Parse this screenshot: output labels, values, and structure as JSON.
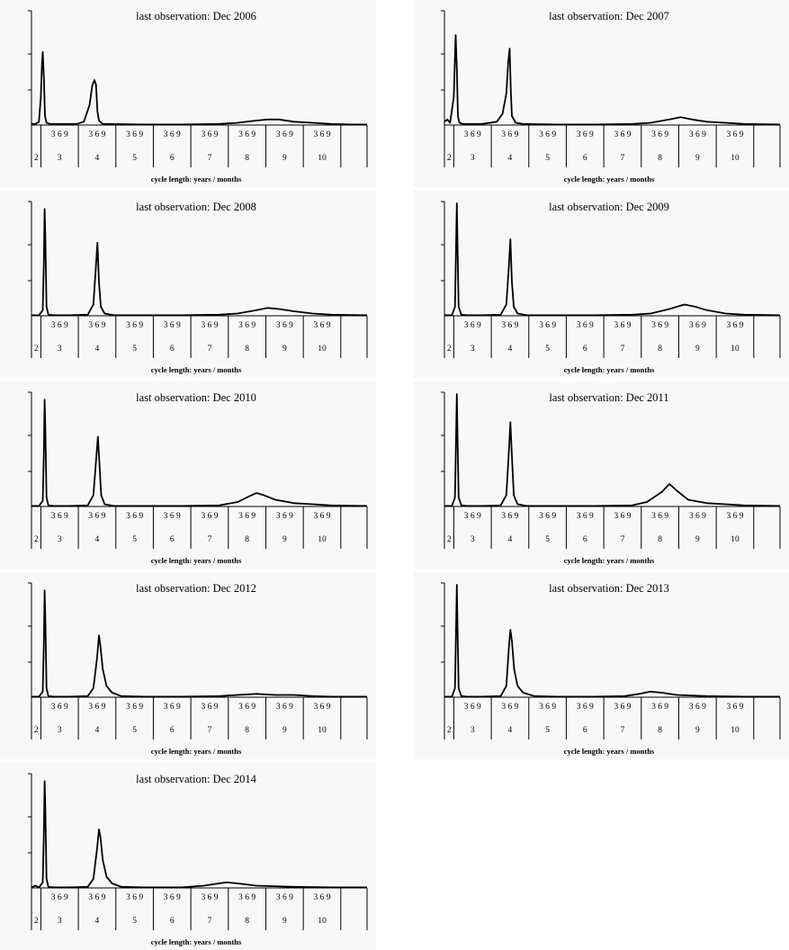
{
  "chart_data": [
    {
      "type": "line",
      "title": "last observation: Dec 2006",
      "xlabel": "cycle length: years / months",
      "month_labels": "3 6 9",
      "year_labels": [
        "2",
        "3",
        "4",
        "5",
        "6",
        "7",
        "8",
        "9",
        "10"
      ],
      "xlim": [
        2.0,
        10.95
      ],
      "ylim": [
        0,
        1
      ],
      "grid": false,
      "series": [
        {
          "x": [
            2.0,
            2.1,
            2.2,
            2.25,
            2.28,
            2.3,
            2.33,
            2.36,
            2.4,
            2.5,
            2.8,
            3.2,
            3.4,
            3.55,
            3.62,
            3.68,
            3.72,
            3.76,
            3.8,
            3.9,
            4.1,
            5.0,
            6.0,
            7.0,
            7.5,
            8.0,
            8.3,
            8.6,
            9.0,
            9.5,
            10.0,
            10.5,
            10.95
          ],
          "y": [
            0.01,
            0.01,
            0.03,
            0.25,
            0.55,
            0.65,
            0.42,
            0.08,
            0.02,
            0.01,
            0.01,
            0.01,
            0.03,
            0.18,
            0.35,
            0.4,
            0.36,
            0.12,
            0.04,
            0.01,
            0.01,
            0.005,
            0.005,
            0.01,
            0.02,
            0.04,
            0.05,
            0.05,
            0.03,
            0.02,
            0.01,
            0.005,
            0.005
          ]
        }
      ]
    },
    {
      "type": "line",
      "title": "last observation: Dec 2007",
      "xlabel": "cycle length: years / months",
      "month_labels": "3 6 9",
      "year_labels": [
        "2",
        "3",
        "4",
        "5",
        "6",
        "7",
        "8",
        "9",
        "10"
      ],
      "xlim": [
        2.0,
        10.95
      ],
      "ylim": [
        0,
        1
      ],
      "grid": false,
      "series": [
        {
          "x": [
            2.0,
            2.08,
            2.15,
            2.25,
            2.28,
            2.3,
            2.33,
            2.36,
            2.4,
            2.5,
            3.0,
            3.4,
            3.55,
            3.65,
            3.7,
            3.74,
            3.77,
            3.8,
            3.9,
            4.1,
            5.0,
            6.0,
            7.0,
            7.5,
            8.0,
            8.3,
            8.6,
            9.0,
            9.5,
            10.0,
            10.95
          ],
          "y": [
            0.03,
            0.05,
            0.02,
            0.25,
            0.6,
            0.8,
            0.5,
            0.08,
            0.02,
            0.01,
            0.01,
            0.03,
            0.1,
            0.28,
            0.55,
            0.68,
            0.3,
            0.08,
            0.02,
            0.01,
            0.005,
            0.005,
            0.01,
            0.02,
            0.05,
            0.07,
            0.05,
            0.03,
            0.02,
            0.01,
            0.005
          ]
        }
      ]
    },
    {
      "type": "line",
      "title": "last observation: Dec 2008",
      "xlabel": "cycle length: years / months",
      "month_labels": "3 6 9",
      "year_labels": [
        "2",
        "3",
        "4",
        "5",
        "6",
        "7",
        "8",
        "9",
        "10"
      ],
      "xlim": [
        2.0,
        10.95
      ],
      "ylim": [
        0,
        1
      ],
      "grid": false,
      "series": [
        {
          "x": [
            2.0,
            2.2,
            2.3,
            2.33,
            2.35,
            2.37,
            2.4,
            2.45,
            2.6,
            3.0,
            3.5,
            3.65,
            3.72,
            3.76,
            3.8,
            3.85,
            3.95,
            4.2,
            5.0,
            6.0,
            7.0,
            7.5,
            8.0,
            8.3,
            8.6,
            9.0,
            9.5,
            10.0,
            10.95
          ],
          "y": [
            0.005,
            0.005,
            0.05,
            0.5,
            0.95,
            0.7,
            0.08,
            0.01,
            0.005,
            0.005,
            0.01,
            0.1,
            0.45,
            0.65,
            0.3,
            0.08,
            0.02,
            0.005,
            0.005,
            0.005,
            0.01,
            0.02,
            0.05,
            0.07,
            0.06,
            0.04,
            0.02,
            0.01,
            0.005
          ]
        }
      ]
    },
    {
      "type": "line",
      "title": "last observation: Dec 2009",
      "xlabel": "cycle length: years / months",
      "month_labels": "3 6 9",
      "year_labels": [
        "2",
        "3",
        "4",
        "5",
        "6",
        "7",
        "8",
        "9",
        "10"
      ],
      "xlim": [
        2.0,
        10.95
      ],
      "ylim": [
        0,
        1
      ],
      "grid": false,
      "series": [
        {
          "x": [
            2.0,
            2.2,
            2.28,
            2.31,
            2.33,
            2.35,
            2.38,
            2.45,
            2.6,
            3.0,
            3.5,
            3.65,
            3.72,
            3.76,
            3.8,
            3.85,
            3.95,
            4.2,
            5.0,
            6.0,
            7.0,
            7.5,
            8.0,
            8.4,
            8.7,
            9.0,
            9.5,
            10.0,
            10.95
          ],
          "y": [
            0.005,
            0.005,
            0.08,
            0.6,
            1.0,
            0.6,
            0.08,
            0.01,
            0.005,
            0.005,
            0.01,
            0.1,
            0.45,
            0.68,
            0.3,
            0.08,
            0.02,
            0.005,
            0.005,
            0.005,
            0.01,
            0.02,
            0.06,
            0.1,
            0.08,
            0.05,
            0.02,
            0.01,
            0.005
          ]
        }
      ]
    },
    {
      "type": "line",
      "title": "last observation: Dec 2010",
      "xlabel": "cycle length: years / months",
      "month_labels": "3 6 9",
      "year_labels": [
        "2",
        "3",
        "4",
        "5",
        "6",
        "7",
        "8",
        "9",
        "10"
      ],
      "xlim": [
        2.0,
        10.95
      ],
      "ylim": [
        0,
        1
      ],
      "grid": false,
      "series": [
        {
          "x": [
            2.0,
            2.2,
            2.3,
            2.33,
            2.35,
            2.37,
            2.4,
            2.45,
            2.6,
            3.0,
            3.5,
            3.65,
            3.72,
            3.77,
            3.81,
            3.86,
            3.95,
            4.2,
            5.0,
            6.0,
            7.0,
            7.5,
            7.8,
            8.0,
            8.2,
            8.5,
            9.0,
            9.5,
            10.0,
            10.95
          ],
          "y": [
            0.005,
            0.005,
            0.05,
            0.5,
            0.95,
            0.7,
            0.08,
            0.01,
            0.005,
            0.005,
            0.01,
            0.1,
            0.4,
            0.62,
            0.4,
            0.1,
            0.02,
            0.005,
            0.005,
            0.005,
            0.01,
            0.04,
            0.09,
            0.12,
            0.1,
            0.06,
            0.03,
            0.02,
            0.01,
            0.005
          ]
        }
      ]
    },
    {
      "type": "line",
      "title": "last observation: Dec 2011",
      "xlabel": "cycle length: years / months",
      "month_labels": "3 6 9",
      "year_labels": [
        "2",
        "3",
        "4",
        "5",
        "6",
        "7",
        "8",
        "9",
        "10"
      ],
      "xlim": [
        2.0,
        10.95
      ],
      "ylim": [
        0,
        1
      ],
      "grid": false,
      "series": [
        {
          "x": [
            2.0,
            2.2,
            2.28,
            2.31,
            2.33,
            2.35,
            2.38,
            2.45,
            2.6,
            3.0,
            3.5,
            3.65,
            3.72,
            3.76,
            3.8,
            3.85,
            3.95,
            4.2,
            5.0,
            6.0,
            7.0,
            7.4,
            7.8,
            8.0,
            8.2,
            8.5,
            9.0,
            9.5,
            10.0,
            10.95
          ],
          "y": [
            0.005,
            0.005,
            0.08,
            0.6,
            1.0,
            0.6,
            0.08,
            0.01,
            0.005,
            0.005,
            0.01,
            0.1,
            0.5,
            0.75,
            0.45,
            0.1,
            0.02,
            0.005,
            0.005,
            0.005,
            0.01,
            0.04,
            0.13,
            0.2,
            0.14,
            0.06,
            0.03,
            0.02,
            0.01,
            0.005
          ]
        }
      ]
    },
    {
      "type": "line",
      "title": "last observation: Dec 2012",
      "xlabel": "cycle length: years / months",
      "month_labels": "3 6 9",
      "year_labels": [
        "2",
        "3",
        "4",
        "5",
        "6",
        "7",
        "8",
        "9",
        "10"
      ],
      "xlim": [
        2.0,
        10.95
      ],
      "ylim": [
        0,
        1
      ],
      "grid": false,
      "series": [
        {
          "x": [
            2.0,
            2.2,
            2.3,
            2.33,
            2.35,
            2.37,
            2.4,
            2.45,
            2.6,
            3.0,
            3.5,
            3.65,
            3.75,
            3.8,
            3.84,
            3.9,
            4.0,
            4.15,
            4.4,
            5.0,
            6.0,
            7.0,
            7.5,
            8.0,
            8.5,
            9.0,
            9.5,
            10.0,
            10.95
          ],
          "y": [
            0.005,
            0.005,
            0.05,
            0.5,
            0.95,
            0.7,
            0.08,
            0.01,
            0.005,
            0.005,
            0.01,
            0.08,
            0.35,
            0.55,
            0.45,
            0.25,
            0.1,
            0.04,
            0.01,
            0.005,
            0.005,
            0.01,
            0.02,
            0.03,
            0.02,
            0.02,
            0.01,
            0.005,
            0.005
          ]
        }
      ]
    },
    {
      "type": "line",
      "title": "last observation: Dec 2013",
      "xlabel": "cycle length: years / months",
      "month_labels": "3 6 9",
      "year_labels": [
        "2",
        "3",
        "4",
        "5",
        "6",
        "7",
        "8",
        "9",
        "10"
      ],
      "xlim": [
        2.0,
        10.95
      ],
      "ylim": [
        0,
        1
      ],
      "grid": false,
      "series": [
        {
          "x": [
            2.0,
            2.2,
            2.28,
            2.31,
            2.33,
            2.35,
            2.38,
            2.45,
            2.6,
            3.0,
            3.5,
            3.65,
            3.72,
            3.76,
            3.8,
            3.86,
            3.95,
            4.1,
            4.4,
            5.0,
            6.0,
            6.8,
            7.2,
            7.5,
            7.8,
            8.2,
            9.0,
            10.0,
            10.95
          ],
          "y": [
            0.005,
            0.005,
            0.08,
            0.6,
            1.0,
            0.6,
            0.08,
            0.01,
            0.005,
            0.005,
            0.01,
            0.1,
            0.45,
            0.6,
            0.5,
            0.25,
            0.1,
            0.04,
            0.01,
            0.005,
            0.005,
            0.01,
            0.03,
            0.05,
            0.04,
            0.02,
            0.01,
            0.005,
            0.005
          ]
        }
      ]
    },
    {
      "type": "line",
      "title": "last observation: Dec 2014",
      "xlabel": "cycle length: years / months",
      "month_labels": "3 6 9",
      "year_labels": [
        "2",
        "3",
        "4",
        "5",
        "6",
        "7",
        "8",
        "9",
        "10"
      ],
      "xlim": [
        2.0,
        10.95
      ],
      "ylim": [
        0,
        1
      ],
      "grid": false,
      "series": [
        {
          "x": [
            2.0,
            2.1,
            2.2,
            2.3,
            2.33,
            2.35,
            2.37,
            2.4,
            2.45,
            2.6,
            3.0,
            3.5,
            3.65,
            3.75,
            3.8,
            3.84,
            3.9,
            4.0,
            4.15,
            4.4,
            5.0,
            6.0,
            6.6,
            7.0,
            7.2,
            7.5,
            8.0,
            9.0,
            10.0,
            10.95
          ],
          "y": [
            0.005,
            0.02,
            0.005,
            0.05,
            0.5,
            0.95,
            0.7,
            0.08,
            0.01,
            0.005,
            0.005,
            0.01,
            0.08,
            0.35,
            0.52,
            0.45,
            0.25,
            0.1,
            0.04,
            0.01,
            0.005,
            0.005,
            0.02,
            0.04,
            0.05,
            0.04,
            0.02,
            0.01,
            0.005,
            0.005
          ]
        }
      ]
    }
  ]
}
